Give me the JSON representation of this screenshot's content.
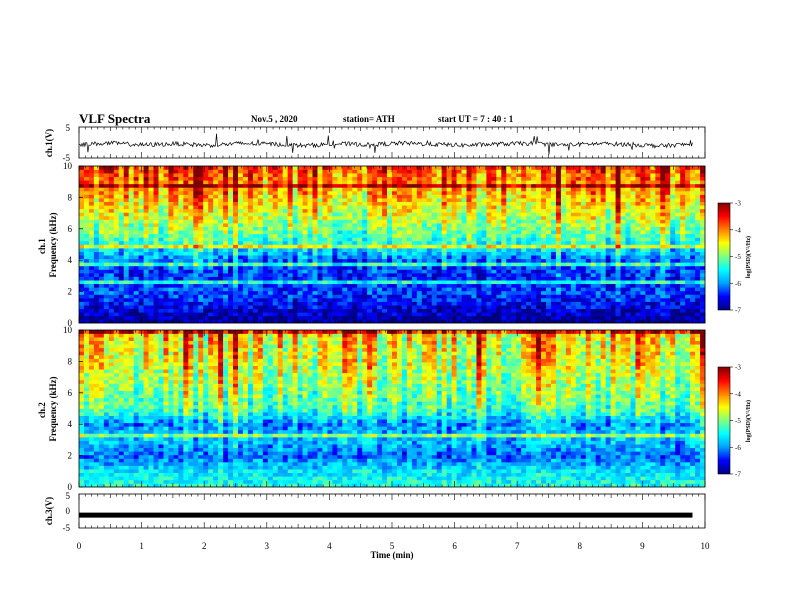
{
  "header": {
    "title": "VLF Spectra",
    "date": "Nov.5 , 2020",
    "station": "station= ATH",
    "start_ut": "start UT = 7 : 40 : 1"
  },
  "colors": {
    "colormap": [
      "#00007f",
      "#0000ff",
      "#00a0ff",
      "#00ffff",
      "#80ff80",
      "#ffff00",
      "#ff8000",
      "#ff0000",
      "#7f0000"
    ],
    "trace": "#000000"
  },
  "chart_data": [
    {
      "type": "line",
      "panel": "ch1-waveform",
      "ylabel": "ch.1(V)",
      "ylim": [
        -5,
        5
      ],
      "yticks": [
        "5",
        "-5"
      ],
      "series": [
        {
          "values": [
            -0.6,
            -0.2,
            -0.8,
            -0.4,
            -0.9,
            -0.3,
            -0.5,
            -1.0,
            -0.4,
            -0.7,
            -0.2,
            -0.6,
            -0.9,
            -0.5,
            -0.3,
            -0.8,
            -0.4,
            -0.6,
            -1.1,
            -0.5
          ]
        }
      ]
    },
    {
      "type": "heatmap",
      "panel": "ch1-spectrogram",
      "ylabel": "ch.1\nFrequency (kHz)",
      "xlim": [
        0,
        10
      ],
      "ylim": [
        0,
        10
      ],
      "yticks": [
        "0",
        "2",
        "4",
        "6",
        "8",
        "10"
      ],
      "colorbar": {
        "label": "log(PSD)(V²/Hz)",
        "range": [
          -7,
          -3
        ],
        "ticks": [
          "-3",
          "-4",
          "-5",
          "-6",
          "-7"
        ]
      },
      "band_levels_by_khz": [
        -7.0,
        -6.6,
        -6.3,
        -6.4,
        -6.2,
        -5.4,
        -5.0,
        -4.6,
        -4.3,
        -4.0,
        -3.7
      ]
    },
    {
      "type": "heatmap",
      "panel": "ch2-spectrogram",
      "ylabel": "ch.2\nFrequency (kHz)",
      "xlim": [
        0,
        10
      ],
      "ylim": [
        0,
        10
      ],
      "yticks": [
        "0",
        "2",
        "4",
        "6",
        "8",
        "10"
      ],
      "colorbar": {
        "label": "log(PSD)(V²/Hz)",
        "range": [
          -7,
          -3
        ],
        "ticks": [
          "-3",
          "-4",
          "-5",
          "-6",
          "-7"
        ]
      },
      "band_levels_by_khz": [
        -5.4,
        -5.6,
        -6.2,
        -5.8,
        -6.0,
        -5.2,
        -5.0,
        -4.8,
        -4.6,
        -4.5,
        -4.3
      ]
    },
    {
      "type": "line",
      "panel": "ch3-waveform",
      "ylabel": "ch.3(V)",
      "ylim": [
        -5,
        5
      ],
      "yticks": [
        "5",
        "0",
        "-5"
      ],
      "series": [
        {
          "values": [
            -1.2,
            -1.2
          ]
        }
      ]
    }
  ],
  "xaxis": {
    "label": "Time (min)",
    "range": [
      0,
      10
    ],
    "ticks": [
      "0",
      "1",
      "2",
      "3",
      "4",
      "5",
      "6",
      "7",
      "8",
      "9",
      "10"
    ]
  }
}
